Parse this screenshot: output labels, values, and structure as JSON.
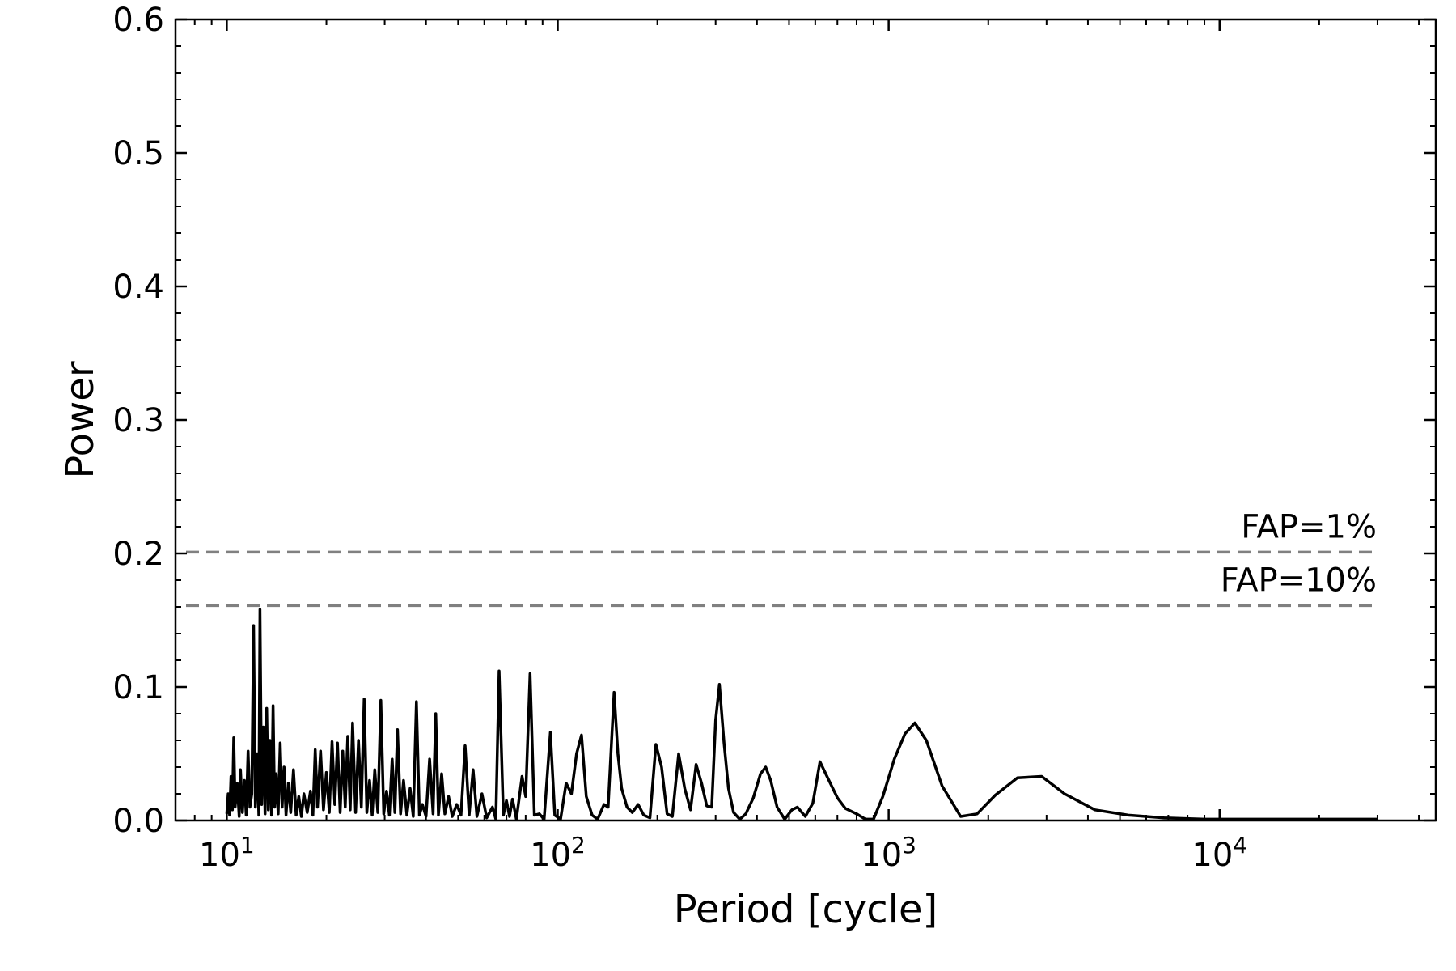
{
  "chart_data": {
    "type": "line",
    "xlabel": "Period [cycle]",
    "ylabel": "Power",
    "xscale": "log",
    "xlim": [
      7,
      45000
    ],
    "ylim": [
      0,
      0.6
    ],
    "grid": false,
    "y_ticks": [
      "0.0",
      "0.1",
      "0.2",
      "0.3",
      "0.4",
      "0.5",
      "0.6"
    ],
    "x_ticks": [
      {
        "value": 10,
        "base": "10",
        "exp": "1"
      },
      {
        "value": 100,
        "base": "10",
        "exp": "2"
      },
      {
        "value": 1000,
        "base": "10",
        "exp": "3"
      },
      {
        "value": 10000,
        "base": "10",
        "exp": "4"
      }
    ],
    "thresholds": [
      {
        "label": "FAP=1%",
        "value": 0.201,
        "color": "#808080"
      },
      {
        "label": "FAP=10%",
        "value": 0.161,
        "color": "#808080"
      }
    ],
    "line_color": "#000000",
    "series": [
      {
        "points": [
          [
            10.0,
            0.005
          ],
          [
            10.1,
            0.02
          ],
          [
            10.2,
            0.004
          ],
          [
            10.3,
            0.033
          ],
          [
            10.4,
            0.008
          ],
          [
            10.5,
            0.062
          ],
          [
            10.6,
            0.01
          ],
          [
            10.75,
            0.028
          ],
          [
            10.9,
            0.003
          ],
          [
            11.0,
            0.038
          ],
          [
            11.15,
            0.006
          ],
          [
            11.3,
            0.03
          ],
          [
            11.45,
            0.004
          ],
          [
            11.6,
            0.052
          ],
          [
            11.75,
            0.01
          ],
          [
            11.9,
            0.02
          ],
          [
            12.05,
            0.146
          ],
          [
            12.2,
            0.01
          ],
          [
            12.35,
            0.05
          ],
          [
            12.5,
            0.004
          ],
          [
            12.6,
            0.158
          ],
          [
            12.75,
            0.012
          ],
          [
            12.9,
            0.07
          ],
          [
            13.05,
            0.005
          ],
          [
            13.2,
            0.084
          ],
          [
            13.35,
            0.008
          ],
          [
            13.5,
            0.06
          ],
          [
            13.65,
            0.004
          ],
          [
            13.8,
            0.086
          ],
          [
            13.95,
            0.01
          ],
          [
            14.1,
            0.035
          ],
          [
            14.3,
            0.005
          ],
          [
            14.5,
            0.058
          ],
          [
            14.7,
            0.01
          ],
          [
            14.9,
            0.04
          ],
          [
            15.1,
            0.004
          ],
          [
            15.35,
            0.028
          ],
          [
            15.6,
            0.006
          ],
          [
            15.9,
            0.038
          ],
          [
            16.2,
            0.004
          ],
          [
            16.5,
            0.018
          ],
          [
            16.8,
            0.003
          ],
          [
            17.1,
            0.02
          ],
          [
            17.5,
            0.006
          ],
          [
            17.9,
            0.022
          ],
          [
            18.2,
            0.004
          ],
          [
            18.5,
            0.053
          ],
          [
            18.8,
            0.01
          ],
          [
            19.2,
            0.052
          ],
          [
            19.6,
            0.008
          ],
          [
            20.0,
            0.036
          ],
          [
            20.4,
            0.006
          ],
          [
            20.8,
            0.059
          ],
          [
            21.2,
            0.012
          ],
          [
            21.6,
            0.058
          ],
          [
            22.0,
            0.006
          ],
          [
            22.4,
            0.052
          ],
          [
            22.8,
            0.01
          ],
          [
            23.2,
            0.063
          ],
          [
            23.6,
            0.008
          ],
          [
            24.0,
            0.073
          ],
          [
            24.5,
            0.006
          ],
          [
            25.0,
            0.06
          ],
          [
            25.5,
            0.01
          ],
          [
            26.0,
            0.091
          ],
          [
            26.5,
            0.006
          ],
          [
            27.0,
            0.03
          ],
          [
            27.5,
            0.004
          ],
          [
            28.0,
            0.038
          ],
          [
            28.6,
            0.006
          ],
          [
            29.2,
            0.09
          ],
          [
            29.8,
            0.005
          ],
          [
            30.4,
            0.022
          ],
          [
            31.0,
            0.004
          ],
          [
            31.6,
            0.046
          ],
          [
            32.2,
            0.006
          ],
          [
            32.8,
            0.068
          ],
          [
            33.5,
            0.005
          ],
          [
            34.2,
            0.03
          ],
          [
            35.0,
            0.004
          ],
          [
            35.8,
            0.024
          ],
          [
            36.6,
            0.003
          ],
          [
            37.4,
            0.089
          ],
          [
            38.2,
            0.004
          ],
          [
            39.0,
            0.012
          ],
          [
            40.0,
            0.003
          ],
          [
            41.0,
            0.046
          ],
          [
            42.0,
            0.005
          ],
          [
            42.8,
            0.08
          ],
          [
            43.6,
            0.004
          ],
          [
            44.6,
            0.035
          ],
          [
            45.6,
            0.005
          ],
          [
            46.8,
            0.018
          ],
          [
            48.0,
            0.003
          ],
          [
            49.5,
            0.012
          ],
          [
            51.0,
            0.004
          ],
          [
            52.5,
            0.056
          ],
          [
            54.0,
            0.004
          ],
          [
            55.5,
            0.038
          ],
          [
            57.0,
            0.003
          ],
          [
            59.0,
            0.02
          ],
          [
            61.0,
            0.002
          ],
          [
            63.5,
            0.01
          ],
          [
            65.0,
            0.001
          ],
          [
            66.5,
            0.112
          ],
          [
            68.5,
            0.004
          ],
          [
            70.0,
            0.015
          ],
          [
            71.5,
            0.003
          ],
          [
            73.0,
            0.016
          ],
          [
            75.0,
            0.001
          ],
          [
            78.0,
            0.033
          ],
          [
            80.0,
            0.018
          ],
          [
            82.5,
            0.11
          ],
          [
            85.0,
            0.004
          ],
          [
            88.0,
            0.005
          ],
          [
            91.0,
            0.001
          ],
          [
            95.0,
            0.066
          ],
          [
            98.0,
            0.004
          ],
          [
            102.0,
            0.001
          ],
          [
            106.0,
            0.028
          ],
          [
            110.0,
            0.02
          ],
          [
            114.0,
            0.05
          ],
          [
            118.0,
            0.064
          ],
          [
            122.0,
            0.018
          ],
          [
            127.0,
            0.004
          ],
          [
            132.0,
            0.001
          ],
          [
            138.0,
            0.012
          ],
          [
            142.0,
            0.01
          ],
          [
            148.0,
            0.096
          ],
          [
            152.0,
            0.05
          ],
          [
            156.0,
            0.024
          ],
          [
            162.0,
            0.01
          ],
          [
            168.0,
            0.006
          ],
          [
            175.0,
            0.012
          ],
          [
            182.0,
            0.004
          ],
          [
            190.0,
            0.002
          ],
          [
            198.0,
            0.057
          ],
          [
            206.0,
            0.04
          ],
          [
            214.0,
            0.005
          ],
          [
            222.0,
            0.003
          ],
          [
            232.0,
            0.05
          ],
          [
            242.0,
            0.024
          ],
          [
            252.0,
            0.008
          ],
          [
            262.0,
            0.042
          ],
          [
            272.0,
            0.028
          ],
          [
            282.0,
            0.011
          ],
          [
            292.0,
            0.01
          ],
          [
            300.0,
            0.075
          ],
          [
            308.0,
            0.102
          ],
          [
            318.0,
            0.058
          ],
          [
            328.0,
            0.024
          ],
          [
            340.0,
            0.006
          ],
          [
            355.0,
            0.001
          ],
          [
            370.0,
            0.005
          ],
          [
            390.0,
            0.017
          ],
          [
            410.0,
            0.035
          ],
          [
            425.0,
            0.04
          ],
          [
            440.0,
            0.03
          ],
          [
            460.0,
            0.01
          ],
          [
            485.0,
            0.001
          ],
          [
            510.0,
            0.008
          ],
          [
            530.0,
            0.01
          ],
          [
            560.0,
            0.003
          ],
          [
            590.0,
            0.013
          ],
          [
            620.0,
            0.044
          ],
          [
            660.0,
            0.03
          ],
          [
            700.0,
            0.017
          ],
          [
            740.0,
            0.009
          ],
          [
            800.0,
            0.005
          ],
          [
            850.0,
            0.001
          ],
          [
            900.0,
            0.001
          ],
          [
            960.0,
            0.018
          ],
          [
            1040.0,
            0.046
          ],
          [
            1120.0,
            0.065
          ],
          [
            1200.0,
            0.073
          ],
          [
            1300.0,
            0.06
          ],
          [
            1450.0,
            0.026
          ],
          [
            1650.0,
            0.003
          ],
          [
            1850.0,
            0.005
          ],
          [
            2100.0,
            0.019
          ],
          [
            2450.0,
            0.032
          ],
          [
            2900.0,
            0.033
          ],
          [
            3400.0,
            0.02
          ],
          [
            4200.0,
            0.008
          ],
          [
            5300.0,
            0.004
          ],
          [
            6800.0,
            0.002
          ],
          [
            9000.0,
            0.001
          ],
          [
            13000.0,
            0.001
          ],
          [
            20000.0,
            0.001
          ],
          [
            30000.0,
            0.001
          ]
        ]
      }
    ]
  }
}
